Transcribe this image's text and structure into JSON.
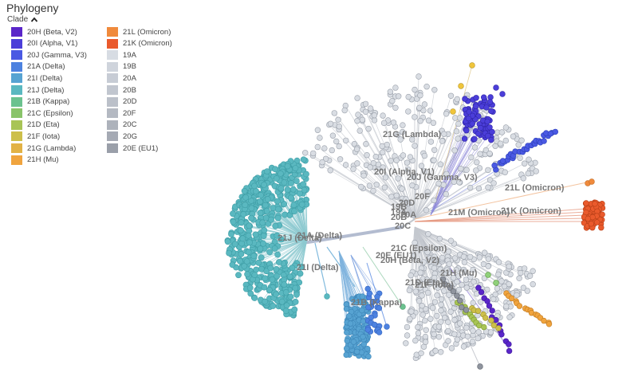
{
  "panel": {
    "title": "Phylogeny",
    "clade_toggle": "Clade"
  },
  "legend": [
    {
      "label": "20H (Beta, V2)",
      "color": "#5a26c9",
      "col": 0
    },
    {
      "label": "20I (Alpha, V1)",
      "color": "#4b3ed9",
      "col": 0
    },
    {
      "label": "20J (Gamma, V3)",
      "color": "#4a59e3",
      "col": 0
    },
    {
      "label": "21A (Delta)",
      "color": "#4d82e0",
      "col": 0
    },
    {
      "label": "21I (Delta)",
      "color": "#57a3d2",
      "col": 0
    },
    {
      "label": "21J (Delta)",
      "color": "#5ab8c0",
      "col": 0
    },
    {
      "label": "21B (Kappa)",
      "color": "#6bc28f",
      "col": 0
    },
    {
      "label": "21C (Epsilon)",
      "color": "#89c46a",
      "col": 0
    },
    {
      "label": "21D (Eta)",
      "color": "#a8c456",
      "col": 0
    },
    {
      "label": "21F (Iota)",
      "color": "#cdbf4a",
      "col": 0
    },
    {
      "label": "21G (Lambda)",
      "color": "#e2b245",
      "col": 0
    },
    {
      "label": "21H (Mu)",
      "color": "#f0a43e",
      "col": 0
    },
    {
      "label": "21L (Omicron)",
      "color": "#f08a3c",
      "col": 1
    },
    {
      "label": "21K (Omicron)",
      "color": "#ea5a2c",
      "col": 1
    },
    {
      "label": "19A",
      "color": "#d7dce3",
      "col": 1
    },
    {
      "label": "19B",
      "color": "#cfd4dc",
      "col": 1
    },
    {
      "label": "20A",
      "color": "#c7ccd5",
      "col": 1
    },
    {
      "label": "20B",
      "color": "#c1c6cf",
      "col": 1
    },
    {
      "label": "20D",
      "color": "#bbc0c9",
      "col": 1
    },
    {
      "label": "20F",
      "color": "#b4b9c2",
      "col": 1
    },
    {
      "label": "20C",
      "color": "#adb2bb",
      "col": 1
    },
    {
      "label": "20G",
      "color": "#a5aab4",
      "col": 1
    },
    {
      "label": "20E (EU1)",
      "color": "#9a9fa9",
      "col": 1
    }
  ],
  "tree_labels": [
    {
      "text": "21G (Lambda)"
    },
    {
      "text": "20I (Alpha, V1)"
    },
    {
      "text": "20J (Gamma, V3)"
    },
    {
      "text": "20F"
    },
    {
      "text": "20D"
    },
    {
      "text": "19B"
    },
    {
      "text": "19A"
    },
    {
      "text": "20B"
    },
    {
      "text": "20A"
    },
    {
      "text": "20C"
    },
    {
      "text": "21L (Omicron)"
    },
    {
      "text": "21M (Omicron)"
    },
    {
      "text": "21K (Omicron)"
    },
    {
      "text": "21A (Delta)"
    },
    {
      "text": "21J (Delta)"
    },
    {
      "text": "21I (Delta)"
    },
    {
      "text": "21B (Kappa)"
    },
    {
      "text": "21C (Epsilon)"
    },
    {
      "text": "20E (EU1)"
    },
    {
      "text": "20H (Beta, V2)"
    },
    {
      "text": "21H (Mu)"
    },
    {
      "text": "21D (Eta)"
    },
    {
      "text": "21F (Iota)"
    }
  ],
  "colors": {
    "delta_j": "#5ab8c0",
    "delta_j_stroke": "#3f9ea6",
    "delta_i": "#57a3d2",
    "delta_a": "#4d82e0",
    "kappa": "#6bc28f",
    "grey_node": "#d9dde3",
    "grey_stroke": "#9aa0aa",
    "alpha": "#4b3ed9",
    "gamma": "#4a59e3",
    "beta": "#5a26c9",
    "omicron_k": "#ea5a2c",
    "omicron_l": "#f08a3c",
    "lambda": "#e2b245",
    "mu": "#f0a43e",
    "eta": "#a8c456",
    "iota": "#cdbf4a",
    "eu1": "#8f949e"
  }
}
